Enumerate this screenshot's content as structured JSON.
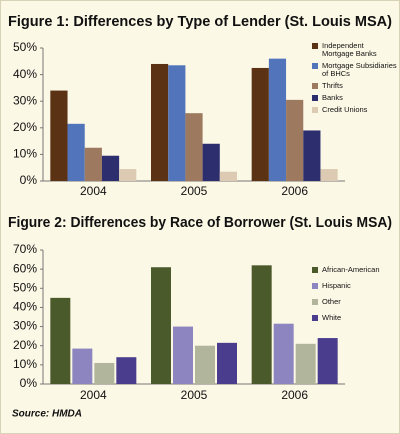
{
  "chart_data": [
    {
      "type": "bar",
      "title": "Figure 1: Differences by Type of Lender (St. Louis MSA)",
      "categories": [
        "2004",
        "2005",
        "2006"
      ],
      "series": [
        {
          "name": "Independent Mortgage Banks",
          "color": "#5b3214",
          "values": [
            34,
            44,
            42.5
          ]
        },
        {
          "name": "Mortgage Subsidiaries of BHCs",
          "color": "#5274ba",
          "values": [
            21.5,
            43.5,
            46
          ]
        },
        {
          "name": "Thrifts",
          "color": "#9d7a5f",
          "values": [
            12.5,
            25.5,
            30.5
          ]
        },
        {
          "name": "Banks",
          "color": "#2c2e6e",
          "values": [
            9.5,
            14,
            19
          ]
        },
        {
          "name": "Credit Unions",
          "color": "#dccbb2",
          "values": [
            4.5,
            3.5,
            4.5
          ]
        }
      ],
      "ylim": [
        0,
        50
      ],
      "yticks": [
        {
          "value": 0,
          "label": "0%"
        },
        {
          "value": 10,
          "label": "10%"
        },
        {
          "value": 20,
          "label": "20%"
        },
        {
          "value": 30,
          "label": "30%"
        },
        {
          "value": 40,
          "label": "40%"
        },
        {
          "value": 50,
          "label": "50%"
        }
      ],
      "legend": "upper right"
    },
    {
      "type": "bar",
      "title": "Figure 2: Differences by Race of Borrower (St. Louis MSA)",
      "categories": [
        "2004",
        "2005",
        "2006"
      ],
      "series": [
        {
          "name": "African-American",
          "color": "#4b5a2b",
          "values": [
            45,
            61,
            62
          ]
        },
        {
          "name": "Hispanic",
          "color": "#8c85c0",
          "values": [
            18.5,
            30,
            31.5
          ]
        },
        {
          "name": "Other",
          "color": "#b1b59c",
          "values": [
            11,
            20,
            21
          ]
        },
        {
          "name": "White",
          "color": "#4b3d8d",
          "values": [
            14,
            21.5,
            24
          ]
        }
      ],
      "ylim": [
        0,
        70
      ],
      "yticks": [
        {
          "value": 0,
          "label": "0%"
        },
        {
          "value": 10,
          "label": "10%"
        },
        {
          "value": 20,
          "label": "20%"
        },
        {
          "value": 30,
          "label": "30%"
        },
        {
          "value": 40,
          "label": "40%"
        },
        {
          "value": 50,
          "label": "50%"
        },
        {
          "value": 60,
          "label": "60%"
        },
        {
          "value": 70,
          "label": "70%"
        }
      ],
      "legend": "upper right"
    }
  ],
  "source": "Source: HMDA"
}
